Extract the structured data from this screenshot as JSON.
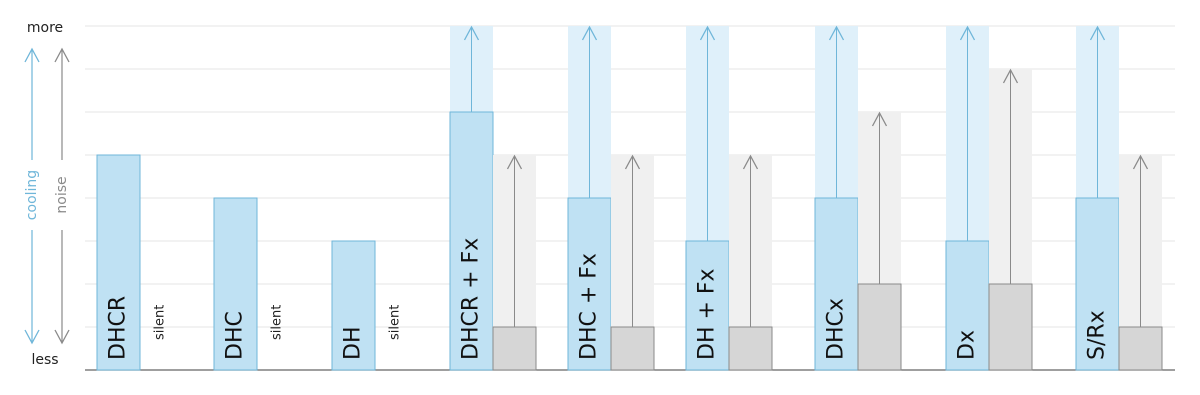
{
  "chart_data": {
    "type": "bar",
    "categories": [
      "DHCR",
      "DHC",
      "DH",
      "DHCR + Fx",
      "DHC + Fx",
      "DH + Fx",
      "DHCx",
      "Dx",
      "S/Rx"
    ],
    "series": [
      {
        "name": "cooling",
        "color": "#bfe1f3",
        "max_color": "#dff0fa",
        "stroke": "#6fb6d9",
        "values": [
          5,
          4,
          3,
          6,
          4,
          3,
          4,
          3,
          4
        ],
        "max_values": [
          null,
          null,
          null,
          8,
          8,
          8,
          8,
          8,
          8
        ]
      },
      {
        "name": "noise",
        "color": "#d6d6d6",
        "max_color": "#f0f0f0",
        "stroke": "#8a8a8a",
        "values": [
          null,
          null,
          null,
          1,
          1,
          1,
          2,
          2,
          1
        ],
        "value_labels": [
          "silent",
          "silent",
          "silent",
          null,
          null,
          null,
          null,
          null,
          null
        ],
        "max_values": [
          null,
          null,
          null,
          5,
          5,
          5,
          6,
          7,
          5
        ]
      }
    ],
    "ylim": [
      0,
      8
    ],
    "yticks": [
      {
        "value": 0,
        "label": "less"
      },
      {
        "value": 8,
        "label": "more"
      }
    ],
    "gridlines": [
      1,
      2,
      3,
      4,
      5,
      6,
      7,
      8
    ]
  }
}
